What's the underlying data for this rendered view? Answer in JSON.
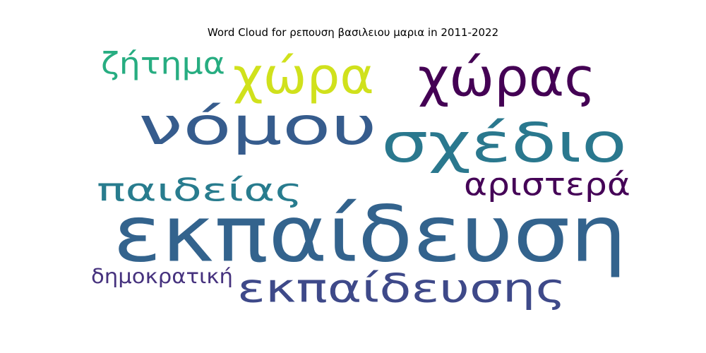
{
  "chart_data": {
    "type": "wordcloud",
    "title": "Word Cloud for ρεπουση βασιλειου μαρια in 2011-2022",
    "background": "#ffffff",
    "words": [
      {
        "text": "εκπαίδευση",
        "weight": 1.0,
        "color": "#33638d"
      },
      {
        "text": "νόμου",
        "weight": 0.88,
        "color": "#365c8d"
      },
      {
        "text": "σχέδιο",
        "weight": 0.7,
        "color": "#2a788e"
      },
      {
        "text": "χώρας",
        "weight": 0.62,
        "color": "#440154"
      },
      {
        "text": "χώρα",
        "weight": 0.55,
        "color": "#d0e11c"
      },
      {
        "text": "εκπαίδευσης",
        "weight": 0.48,
        "color": "#3e4989"
      },
      {
        "text": "παιδείας",
        "weight": 0.4,
        "color": "#287c8e"
      },
      {
        "text": "ζήτημα",
        "weight": 0.36,
        "color": "#27ad81"
      },
      {
        "text": "αριστερά",
        "weight": 0.33,
        "color": "#450457"
      },
      {
        "text": "δημοκρατική",
        "weight": 0.24,
        "color": "#46327e"
      }
    ]
  }
}
